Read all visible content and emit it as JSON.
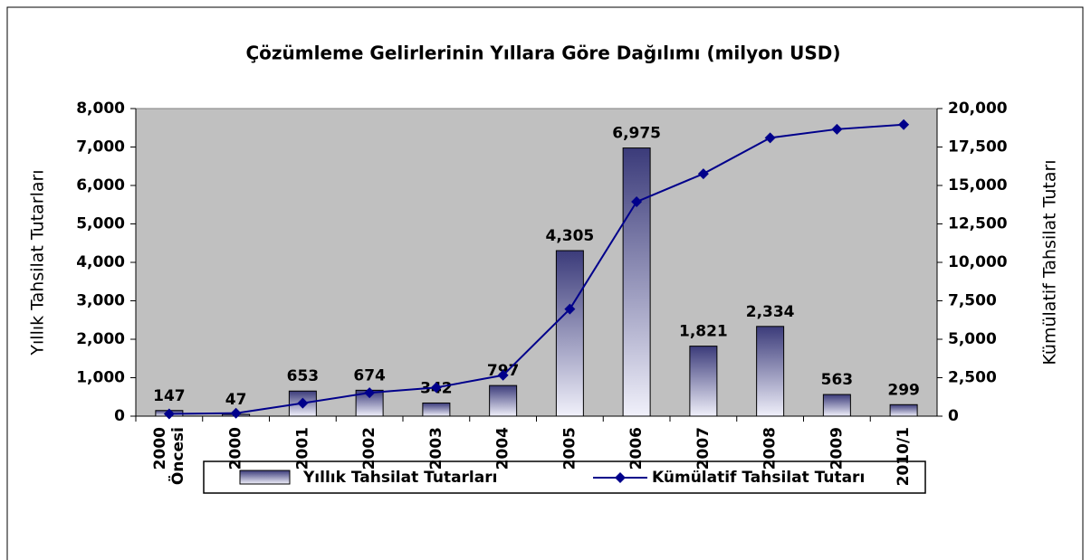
{
  "chart_data": {
    "type": "bar",
    "title": "Çözümleme Gelirlerinin Yıllara Göre Dağılımı (milyon USD)",
    "ylabel": "Yıllık Tahsilat Tutarları",
    "y2label": "Kümülatif Tahsilat Tutarı",
    "categories": [
      "2000 Öncesi",
      "2000",
      "2001",
      "2002",
      "2003",
      "2004",
      "2005",
      "2006",
      "2007",
      "2008",
      "2009",
      "2010/1"
    ],
    "series": [
      {
        "name": "Yıllık Tahsilat Tutarları",
        "type": "bar",
        "color": "#3b3b7a",
        "values": [
          147,
          47,
          653,
          674,
          342,
          797,
          4305,
          6975,
          1821,
          2334,
          563,
          299
        ],
        "value_labels": [
          "147",
          "47",
          "653",
          "674",
          "342",
          "797",
          "4,305",
          "6,975",
          "1,821",
          "2,334",
          "563",
          "299"
        ]
      },
      {
        "name": "Kümülatif Tahsilat Tutarı",
        "type": "line",
        "axis": "y2",
        "color": "#00008b",
        "values": [
          147,
          194,
          847,
          1521,
          1863,
          2660,
          6965,
          13940,
          15761,
          18095,
          18658,
          18957
        ]
      }
    ],
    "ylim": [
      0,
      8000
    ],
    "yticks": [
      0,
      {
        "value": 1000,
        "label": "1,000"
      },
      {
        "value": 2000,
        "label": "2,000"
      },
      {
        "value": 3000,
        "label": "3,000"
      },
      {
        "value": 4000,
        "label": "4,000"
      },
      {
        "value": 5000,
        "label": "5,000"
      },
      {
        "value": 6000,
        "label": "6,000"
      },
      {
        "value": 7000,
        "label": "7,000"
      },
      {
        "value": 8000,
        "label": "8,000"
      }
    ],
    "y2lim": [
      0,
      20000
    ],
    "y2ticks": [
      0,
      {
        "value": 2500,
        "label": "2,500"
      },
      {
        "value": 5000,
        "label": "5,000"
      },
      {
        "value": 7500,
        "label": "7,500"
      },
      {
        "value": 10000,
        "label": "10,000"
      },
      {
        "value": 12500,
        "label": "12,500"
      },
      {
        "value": 15000,
        "label": "15,000"
      },
      {
        "value": 17500,
        "label": "17,500"
      },
      {
        "value": 20000,
        "label": "20,000"
      }
    ],
    "plot_background": "#c0c0c0"
  }
}
